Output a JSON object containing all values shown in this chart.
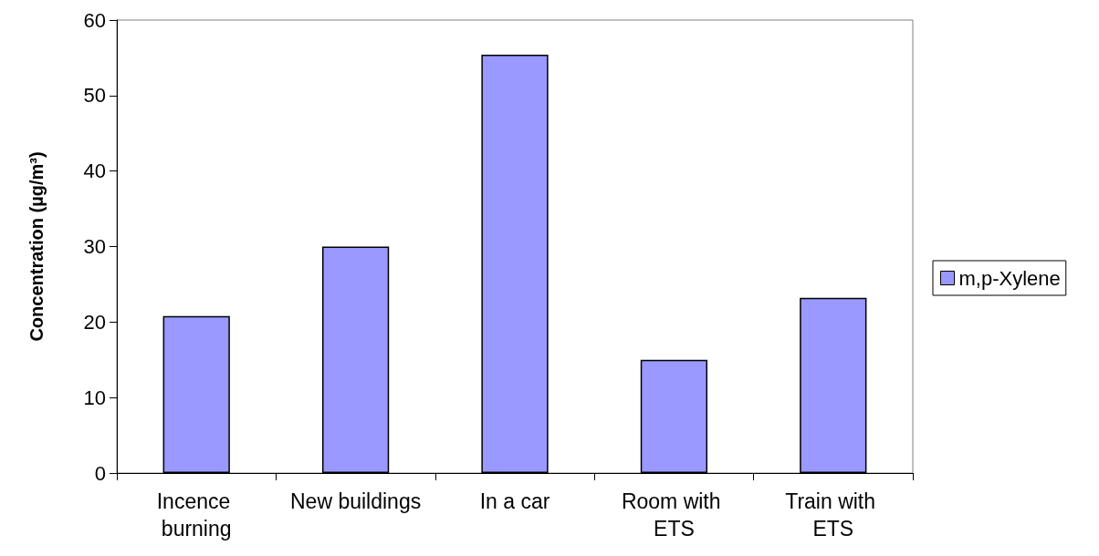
{
  "chart_data": {
    "type": "bar",
    "categories": [
      "Incence burning",
      "New buildings",
      "In a car",
      "Room with ETS",
      "Train with ETS"
    ],
    "series": [
      {
        "name": "m,p-Xylene",
        "color": "#9999ff",
        "values": [
          20.8,
          30.0,
          55.4,
          15.0,
          23.2
        ]
      }
    ],
    "ylabel": "Concentration (µg/m³)",
    "ylim": [
      0,
      60
    ],
    "yticks": [
      0,
      10,
      20,
      30,
      40,
      50,
      60
    ],
    "legend": "right"
  }
}
